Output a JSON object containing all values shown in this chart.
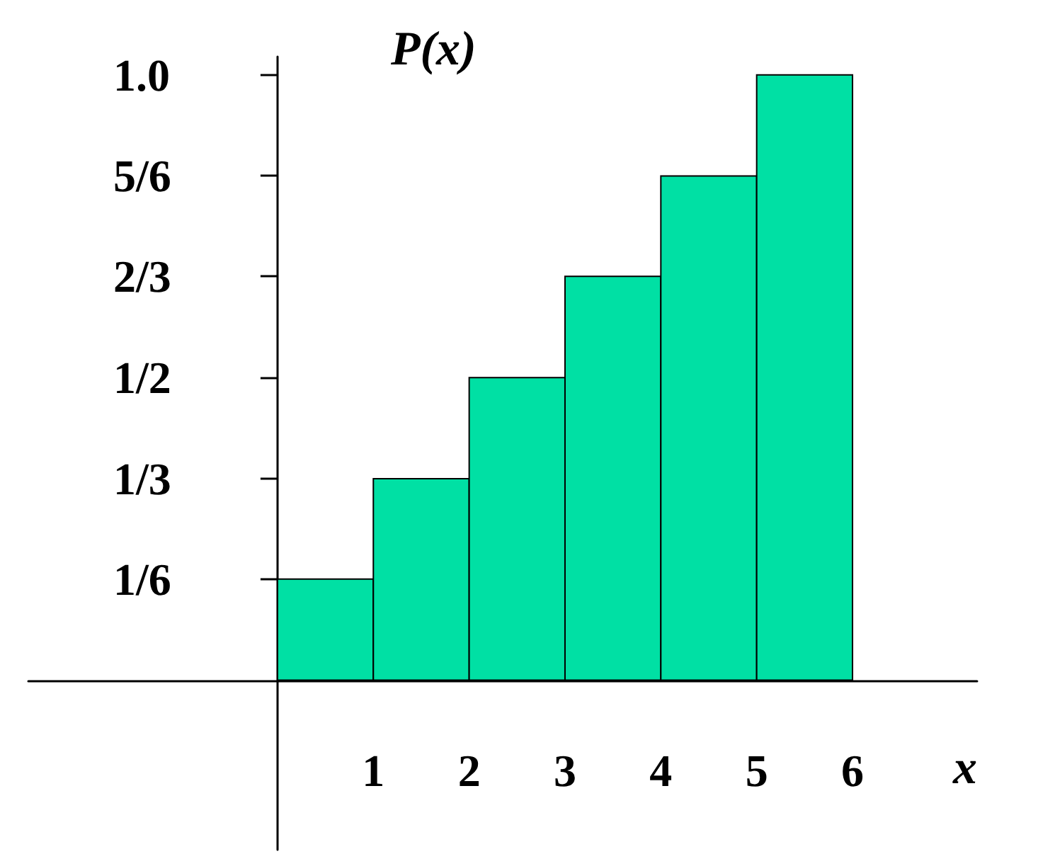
{
  "chart_data": {
    "type": "histogram",
    "xlabel": "x",
    "ylabel": "P(x)",
    "bins": [
      0,
      1,
      2,
      3,
      4,
      5,
      6
    ],
    "values": [
      0.167,
      0.333,
      0.5,
      0.667,
      0.833,
      1.0
    ],
    "color": "#00e0a4",
    "xlim": [
      -2.6,
      7.3
    ],
    "xticks": [
      1,
      2,
      3,
      4,
      5,
      6
    ],
    "ylim": [
      -0.28,
      1.03
    ],
    "yticks": [
      {
        "value": 0.167,
        "label": "1/6"
      },
      {
        "value": 0.333,
        "label": "1/3"
      },
      {
        "value": 0.5,
        "label": "1/2"
      },
      {
        "value": 0.667,
        "label": "2/3"
      },
      {
        "value": 0.833,
        "label": "5/6"
      },
      {
        "value": 1.0,
        "label": "1.0"
      }
    ],
    "grid": false
  }
}
